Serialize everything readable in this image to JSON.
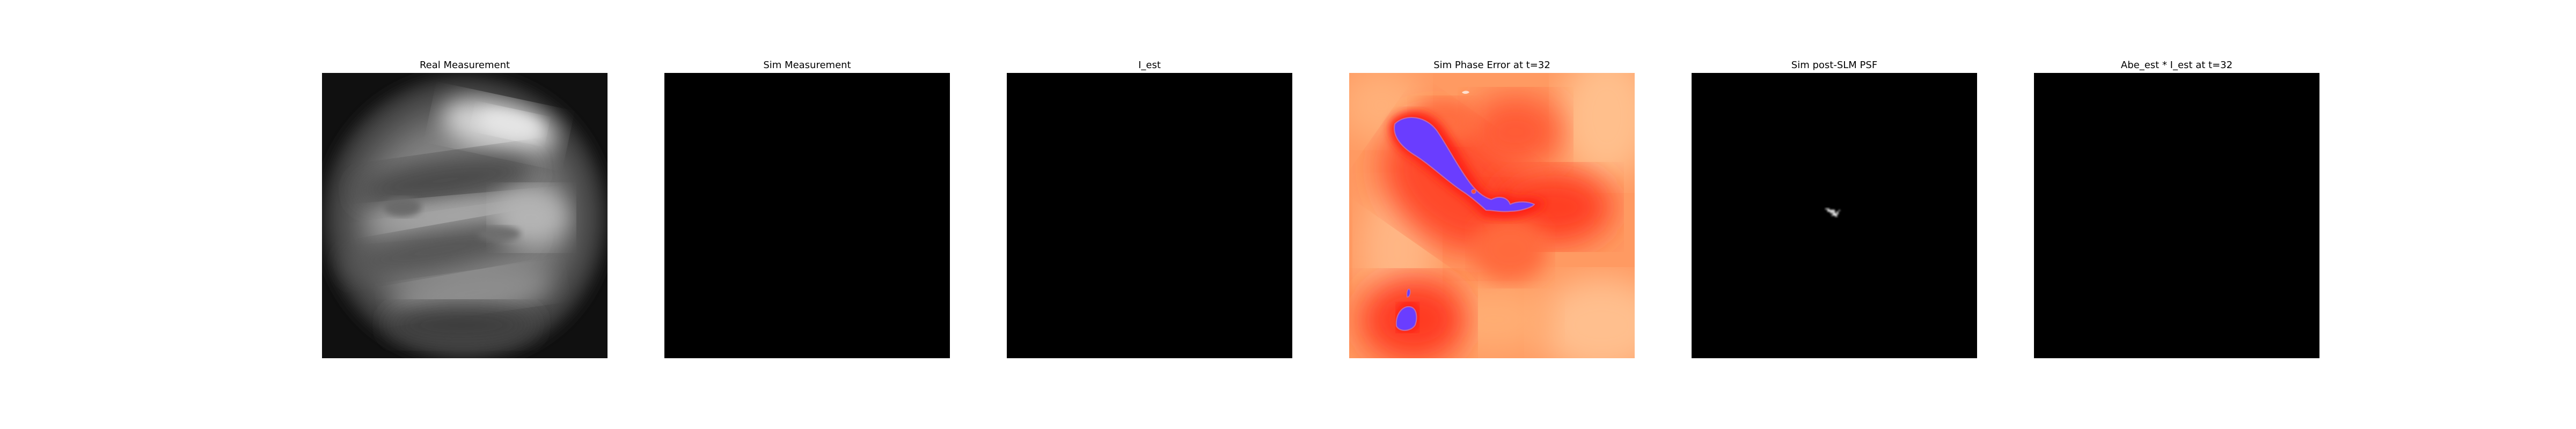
{
  "figure": {
    "panels": [
      {
        "title": "Real Measurement",
        "content": "grayscale-planet-image"
      },
      {
        "title": "Sim Measurement",
        "content": "black-image"
      },
      {
        "title": "I_est",
        "content": "black-image"
      },
      {
        "title": "Sim Phase Error at t=32",
        "content": "phase-error-heatmap"
      },
      {
        "title": "Sim post-SLM PSF",
        "content": "psf-image"
      },
      {
        "title": "Abe_est * I_est at t=32",
        "content": "black-image"
      }
    ],
    "colors": {
      "background": "#ffffff",
      "title_text": "#000000",
      "black_image": "#000000",
      "phase_low": "#6a3dff",
      "phase_mid": "#ff2a1a",
      "phase_high": "#ffb078"
    }
  }
}
